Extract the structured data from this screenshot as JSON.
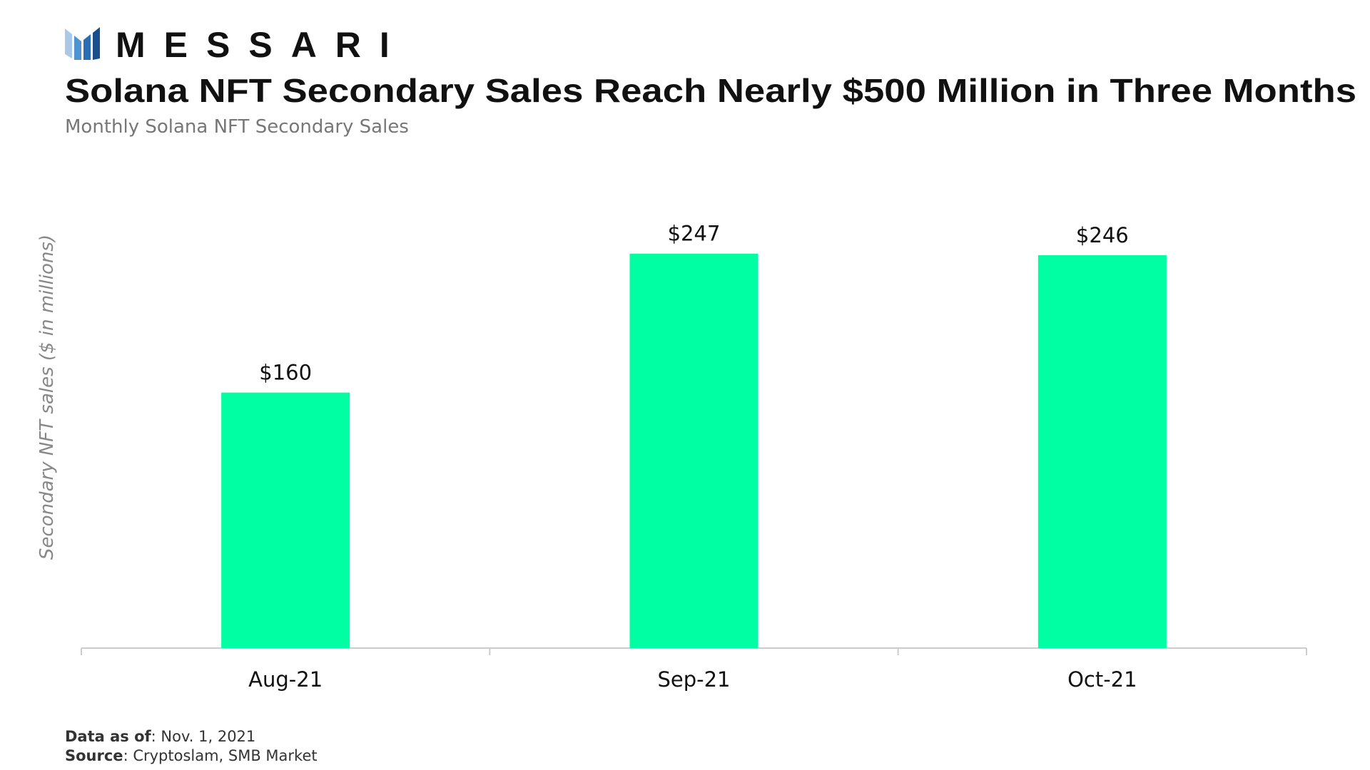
{
  "brand": "MESSARI",
  "chart_data": {
    "type": "bar",
    "title": "Solana NFT Secondary Sales Reach Nearly $500 Million in Three Months",
    "subtitle": "Monthly Solana NFT Secondary Sales",
    "y_label": "Secondary NFT sales ($ in millions)",
    "categories": [
      "Aug-21",
      "Sep-21",
      "Oct-21"
    ],
    "values": [
      160,
      247,
      246
    ],
    "value_labels": [
      "$160",
      "$247",
      "$246"
    ],
    "color": "#00ffa3",
    "ylim": [
      0,
      250
    ]
  },
  "footnotes": [
    {
      "label": "Data as of",
      "text": ": Nov. 1, 2021"
    },
    {
      "label": "Source",
      "text": ": Cryptoslam, SMB Market"
    }
  ]
}
